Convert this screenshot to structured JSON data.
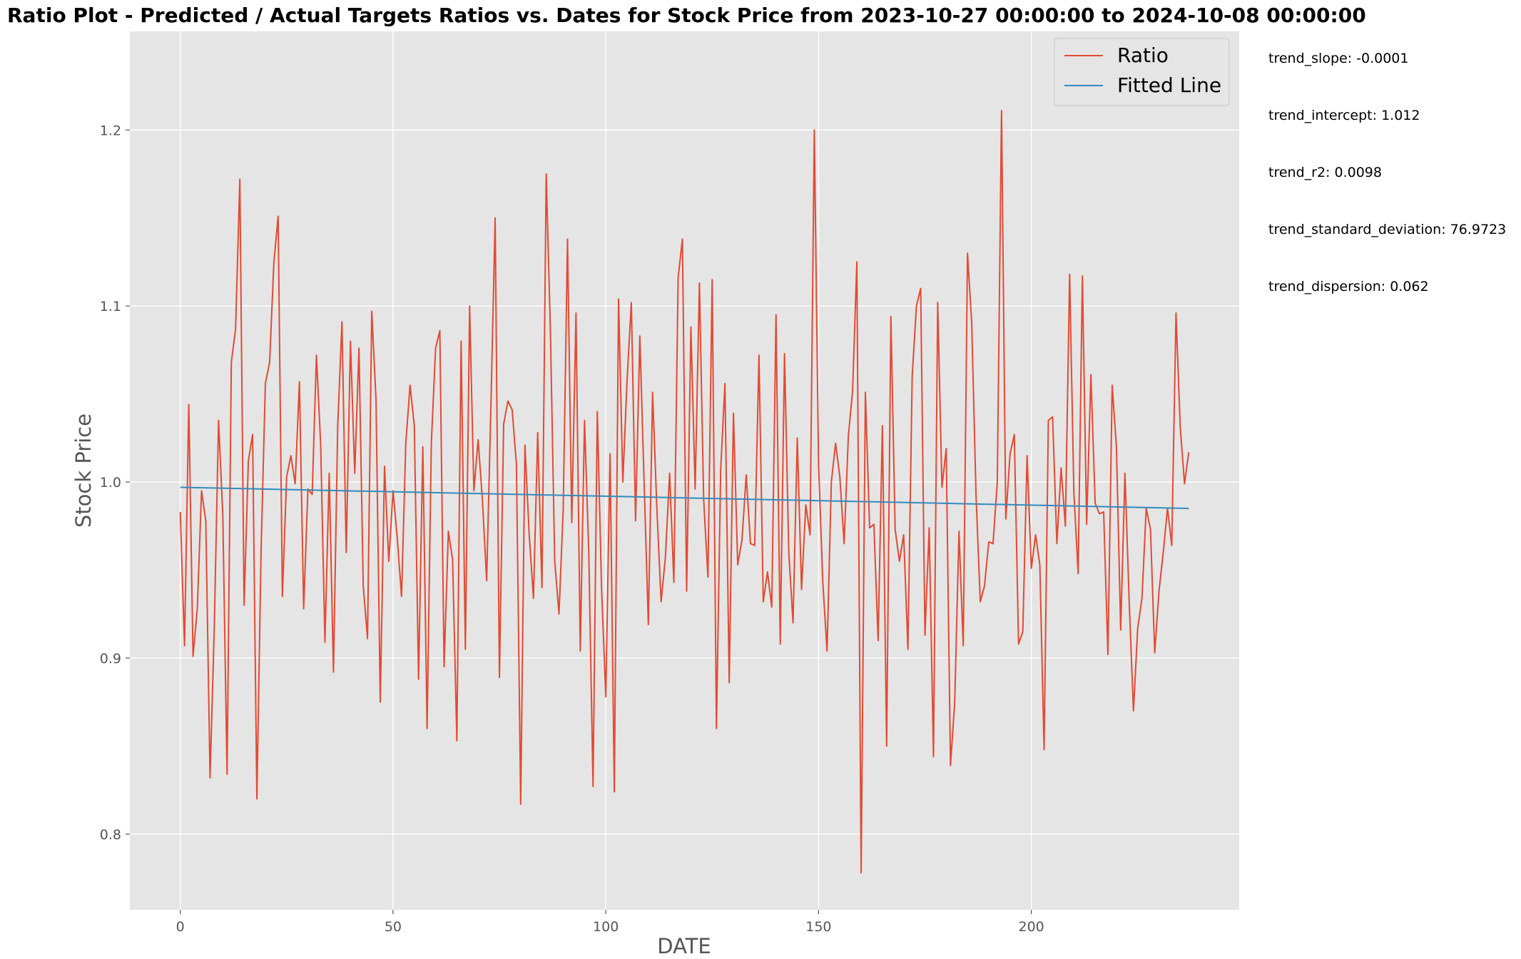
{
  "chart_data": {
    "type": "line",
    "title": "Ratio Plot - Predicted / Actual Targets Ratios vs. Dates for Stock Price from 2023-10-27 00:00:00 to 2024-10-08 00:00:00",
    "xlabel": "DATE",
    "ylabel": "Stock Price",
    "xlim": [
      -11.85,
      248.85
    ],
    "ylim": [
      0.757,
      1.256
    ],
    "x_ticks": [
      0,
      50,
      100,
      150,
      200
    ],
    "y_ticks": [
      0.8,
      0.9,
      1.0,
      1.1,
      1.2
    ],
    "x_tick_labels": [
      "0",
      "50",
      "100",
      "150",
      "200"
    ],
    "y_tick_labels": [
      "0.8",
      "0.9",
      "1.0",
      "1.1",
      "1.2"
    ],
    "grid": true,
    "legend_position": "top-right",
    "series": [
      {
        "name": "Ratio",
        "color": "#e24a33",
        "x_start": 0,
        "values": [
          0.983,
          0.907,
          1.044,
          0.901,
          0.928,
          0.995,
          0.978,
          0.832,
          0.918,
          1.035,
          0.981,
          0.834,
          1.068,
          1.087,
          1.172,
          0.93,
          1.012,
          1.027,
          0.82,
          0.962,
          1.056,
          1.068,
          1.125,
          1.151,
          0.935,
          1.003,
          1.015,
          0.999,
          1.057,
          0.928,
          0.996,
          0.993,
          1.072,
          1.021,
          0.909,
          1.005,
          0.892,
          1.032,
          1.091,
          0.96,
          1.08,
          1.005,
          1.076,
          0.941,
          0.911,
          1.097,
          1.047,
          0.875,
          1.009,
          0.955,
          0.995,
          0.968,
          0.935,
          1.022,
          1.055,
          1.032,
          0.888,
          1.02,
          0.86,
          1.022,
          1.076,
          1.086,
          0.895,
          0.972,
          0.956,
          0.853,
          1.08,
          0.905,
          1.1,
          0.995,
          1.024,
          0.99,
          0.944,
          1.043,
          1.15,
          0.889,
          1.033,
          1.046,
          1.041,
          1.01,
          0.817,
          1.021,
          0.97,
          0.934,
          1.028,
          0.94,
          1.175,
          1.084,
          0.955,
          0.925,
          0.985,
          1.138,
          0.977,
          1.096,
          0.904,
          1.035,
          0.96,
          0.827,
          1.04,
          0.94,
          0.878,
          1.016,
          0.824,
          1.104,
          1.0,
          1.058,
          1.102,
          0.978,
          1.083,
          1.0,
          0.919,
          1.051,
          0.985,
          0.932,
          0.957,
          1.005,
          0.943,
          1.116,
          1.138,
          0.938,
          1.088,
          0.996,
          1.113,
          0.99,
          0.946,
          1.115,
          0.86,
          1.007,
          1.056,
          0.886,
          1.039,
          0.953,
          0.967,
          1.004,
          0.965,
          0.964,
          1.072,
          0.932,
          0.949,
          0.929,
          1.095,
          0.908,
          1.073,
          0.96,
          0.92,
          1.025,
          0.939,
          0.987,
          0.97,
          1.2,
          1.01,
          0.943,
          0.904,
          1.0,
          1.022,
          1.003,
          0.965,
          1.026,
          1.052,
          1.125,
          0.778,
          1.051,
          0.974,
          0.976,
          0.91,
          1.032,
          0.85,
          1.094,
          0.973,
          0.955,
          0.97,
          0.905,
          1.06,
          1.1,
          1.11,
          0.913,
          0.974,
          0.844,
          1.102,
          0.997,
          1.019,
          0.839,
          0.875,
          0.972,
          0.907,
          1.13,
          1.09,
          0.993,
          0.932,
          0.941,
          0.966,
          0.965,
          1.0,
          1.211,
          0.979,
          1.016,
          1.027,
          0.908,
          0.915,
          1.015,
          0.951,
          0.97,
          0.953,
          0.848,
          1.035,
          1.037,
          0.965,
          1.008,
          0.975,
          1.118,
          0.994,
          0.948,
          1.117,
          0.976,
          1.061,
          0.988,
          0.982,
          0.983,
          0.902,
          1.055,
          1.02,
          0.916,
          1.005,
          0.932,
          0.87,
          0.917,
          0.934,
          0.985,
          0.973,
          0.903,
          0.938,
          0.96,
          0.985,
          0.964,
          1.096,
          1.031,
          0.999,
          1.017
        ]
      },
      {
        "name": "Fitted Line",
        "color": "#348abd",
        "x": [
          0,
          237
        ],
        "y": [
          0.997,
          0.985
        ]
      }
    ]
  },
  "stats": [
    "trend_slope: -0.0001",
    "trend_intercept: 1.012",
    "trend_r2: 0.0098",
    "trend_standard_deviation: 76.9723",
    "trend_dispersion: 0.062"
  ]
}
